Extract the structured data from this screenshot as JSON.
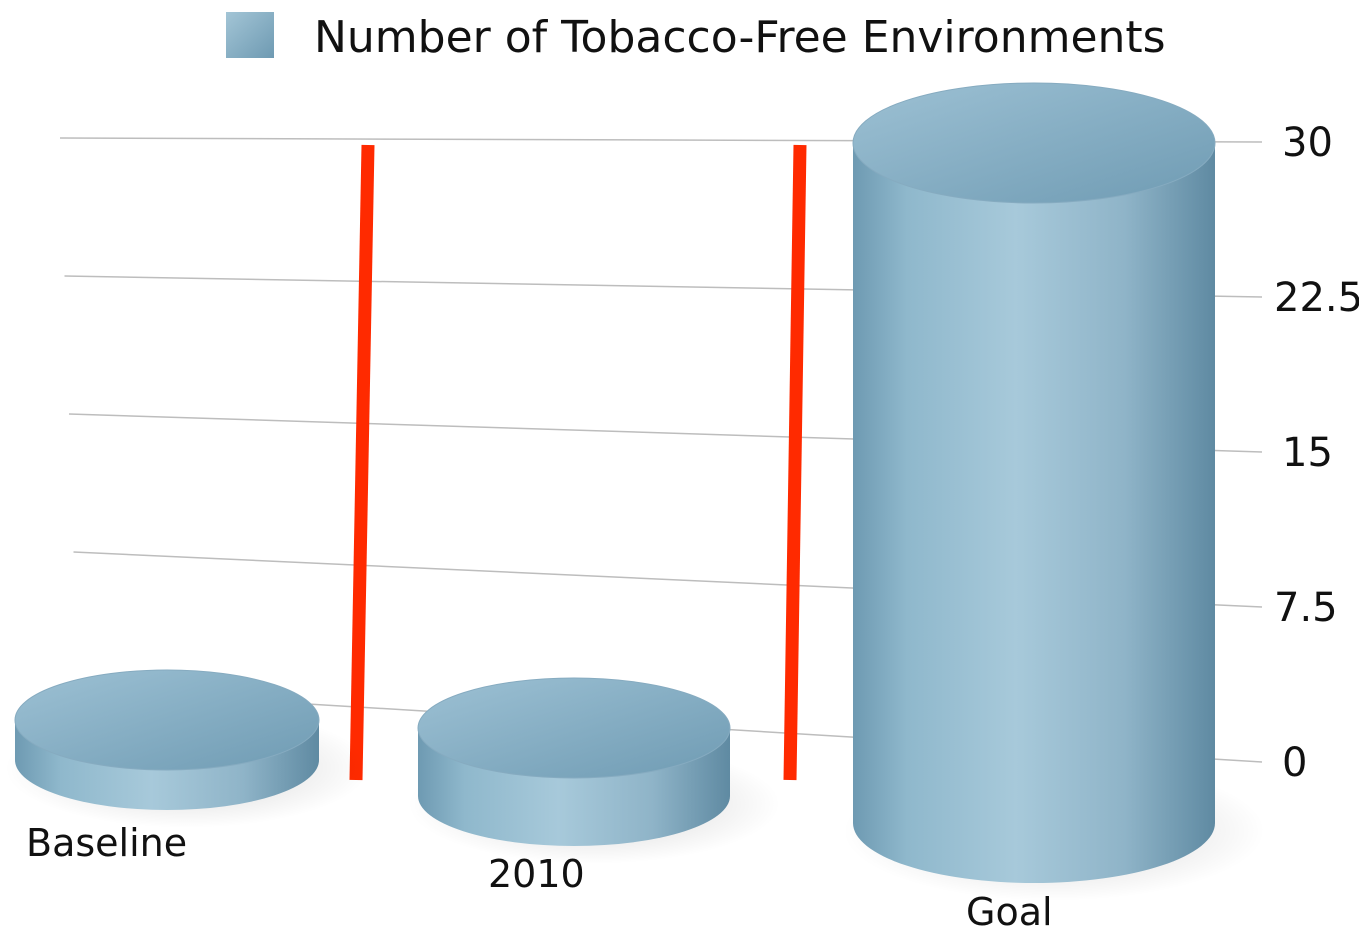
{
  "chart_data": {
    "type": "bar",
    "style": "3d-cylinder",
    "categories": [
      "Baseline",
      "2010",
      "Goal"
    ],
    "series": [
      {
        "name": "Number of Tobacco-Free Environments",
        "values": [
          1,
          3,
          30
        ],
        "color": "#8fb4c8"
      }
    ],
    "yticks": [
      "0",
      "7.5",
      "15",
      "22.5",
      "30"
    ],
    "ylim": [
      0,
      30
    ],
    "grid": true,
    "legend": "top-center",
    "divider_color": "#ff2a00"
  }
}
